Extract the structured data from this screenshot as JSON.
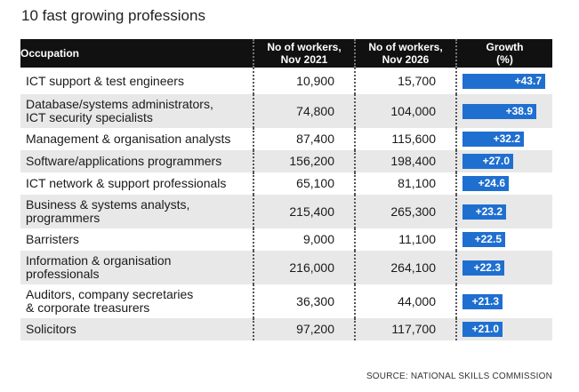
{
  "title": "10 fast growing professions",
  "columns": {
    "occupation": "Occupation",
    "workers_2021": "No of workers, Nov 2021",
    "workers_2026": "No of workers, Nov 2026",
    "growth": "Growth (%)"
  },
  "source": "SOURCE: NATIONAL SKILLS COMMISSION",
  "colors": {
    "bar": "#1f6fd0",
    "header_bg": "#111111",
    "row_alt": "#e8e8e8"
  },
  "chart_data": {
    "type": "table",
    "title": "10 fast growing professions",
    "columns": [
      "Occupation",
      "No of workers, Nov 2021",
      "No of workers, Nov 2026",
      "Growth (%)"
    ],
    "rows": [
      {
        "occupation": "ICT support & test engineers",
        "nov2021": "10,900",
        "nov2026": "15,700",
        "growth": 43.7,
        "growth_label": "+43.7"
      },
      {
        "occupation": "Database/systems administrators, ICT security specialists",
        "nov2021": "74,800",
        "nov2026": "104,000",
        "growth": 38.9,
        "growth_label": "+38.9"
      },
      {
        "occupation": "Management & organisation analysts",
        "nov2021": "87,400",
        "nov2026": "115,600",
        "growth": 32.2,
        "growth_label": "+32.2"
      },
      {
        "occupation": "Software/applications programmers",
        "nov2021": "156,200",
        "nov2026": "198,400",
        "growth": 27.0,
        "growth_label": "+27.0"
      },
      {
        "occupation": "ICT network & support professionals",
        "nov2021": "65,100",
        "nov2026": "81,100",
        "growth": 24.6,
        "growth_label": "+24.6"
      },
      {
        "occupation": "Business & systems analysts, programmers",
        "nov2021": "215,400",
        "nov2026": "265,300",
        "growth": 23.2,
        "growth_label": "+23.2"
      },
      {
        "occupation": "Barristers",
        "nov2021": "9,000",
        "nov2026": "11,100",
        "growth": 22.5,
        "growth_label": "+22.5"
      },
      {
        "occupation": "Information & organisation professionals",
        "nov2021": "216,000",
        "nov2026": "264,100",
        "growth": 22.3,
        "growth_label": "+22.3"
      },
      {
        "occupation": "Auditors, company secretaries & corporate treasurers",
        "nov2021": "36,300",
        "nov2026": "44,000",
        "growth": 21.3,
        "growth_label": "+21.3"
      },
      {
        "occupation": "Solicitors",
        "nov2021": "97,200",
        "nov2026": "117,700",
        "growth": 21.0,
        "growth_label": "+21.0"
      }
    ]
  }
}
